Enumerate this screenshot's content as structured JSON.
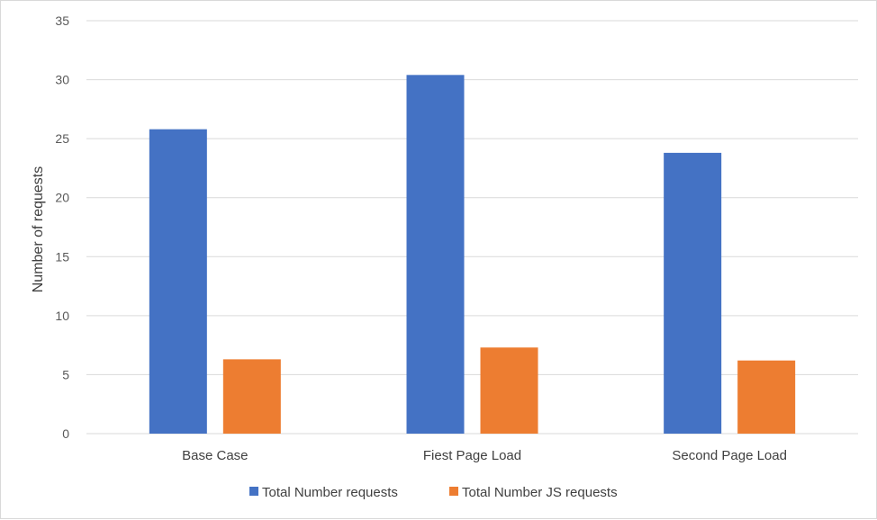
{
  "chart_data": {
    "type": "bar",
    "title": "",
    "xlabel": "",
    "ylabel": "Number of requests",
    "ylim": [
      0,
      35
    ],
    "yticks": [
      0,
      5,
      10,
      15,
      20,
      25,
      30,
      35
    ],
    "grid": true,
    "legend_position": "bottom",
    "categories": [
      "Base Case",
      "Fiest Page Load",
      "Second Page Load"
    ],
    "series": [
      {
        "name": "Total Number requests",
        "color": "#4472c4",
        "values": [
          25.8,
          30.4,
          23.8
        ]
      },
      {
        "name": "Total Number JS requests",
        "color": "#ed7d31",
        "values": [
          6.3,
          7.3,
          6.2
        ]
      }
    ]
  }
}
